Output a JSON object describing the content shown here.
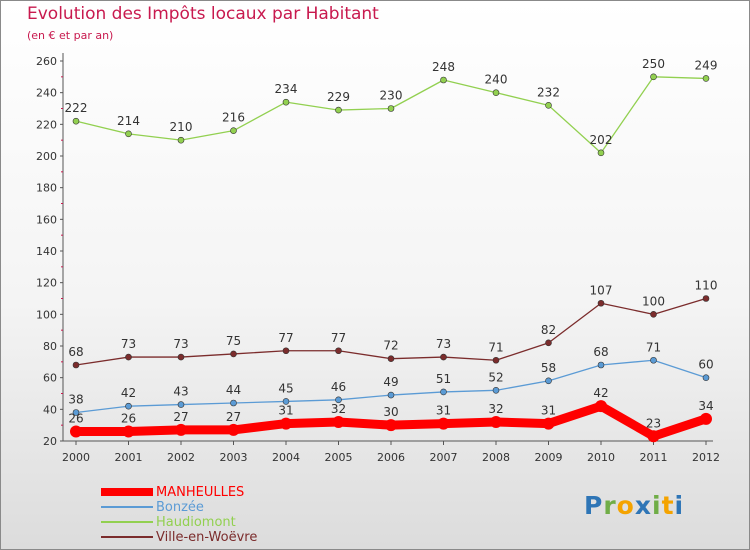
{
  "header": {
    "title": "Evolution des Impôts locaux par Habitant",
    "subtitle": "(en € et par an)"
  },
  "chart_data": {
    "type": "line",
    "title": "Evolution des Impôts locaux par Habitant",
    "subtitle": "(en € et par an)",
    "xlabel": "",
    "ylabel": "",
    "x": [
      "2000",
      "2001",
      "2002",
      "2003",
      "2004",
      "2005",
      "2006",
      "2007",
      "2008",
      "2009",
      "2010",
      "2011",
      "2012"
    ],
    "ylim": [
      20,
      260
    ],
    "yticks": [
      20,
      40,
      60,
      80,
      100,
      120,
      140,
      160,
      180,
      200,
      220,
      240,
      260
    ],
    "grid": false,
    "legend_position": "bottom-left",
    "series": [
      {
        "name": "MANHEULLES",
        "color": "#ff0000",
        "values": [
          26,
          26,
          27,
          27,
          31,
          32,
          30,
          31,
          32,
          31,
          42,
          23,
          34
        ],
        "labels": [
          "26",
          "26",
          "27",
          "27",
          "31",
          "32",
          "30",
          "31",
          "32",
          "31",
          "42",
          "23",
          "34"
        ]
      },
      {
        "name": "Bonzée",
        "color": "#5b9bd5",
        "values": [
          38,
          42,
          43,
          44,
          45,
          46,
          49,
          51,
          52,
          58,
          68,
          71,
          60
        ],
        "labels": [
          "38",
          "42",
          "43",
          "44",
          "45",
          "46",
          "49",
          "51",
          "52",
          "58",
          "68",
          "71",
          "60"
        ]
      },
      {
        "name": "Haudiomont",
        "color": "#92d050",
        "values": [
          222,
          214,
          210,
          216,
          234,
          229,
          230,
          248,
          240,
          232,
          202,
          250,
          249
        ],
        "labels": [
          "222",
          "214",
          "210",
          "216",
          "234",
          "229",
          "230",
          "248",
          "240",
          "232",
          "202",
          "250",
          "249"
        ]
      },
      {
        "name": "Ville-en-Woëvre",
        "color": "#7b2c2c",
        "values": [
          68,
          73,
          73,
          75,
          77,
          77,
          72,
          73,
          71,
          82,
          107,
          100,
          110
        ],
        "labels": [
          "68",
          "73",
          "73",
          "75",
          "77",
          "77",
          "72",
          "73",
          "71",
          "82",
          "107",
          "100",
          "110"
        ]
      }
    ]
  },
  "logo": {
    "letters": [
      {
        "ch": "P",
        "color": "#2e75b6"
      },
      {
        "ch": "r",
        "color": "#70ad47"
      },
      {
        "ch": "o",
        "color": "#f4a300"
      },
      {
        "ch": "x",
        "color": "#2e75b6"
      },
      {
        "ch": "i",
        "color": "#70ad47"
      },
      {
        "ch": "t",
        "color": "#f4a300"
      },
      {
        "ch": "i",
        "color": "#2e75b6"
      }
    ]
  }
}
